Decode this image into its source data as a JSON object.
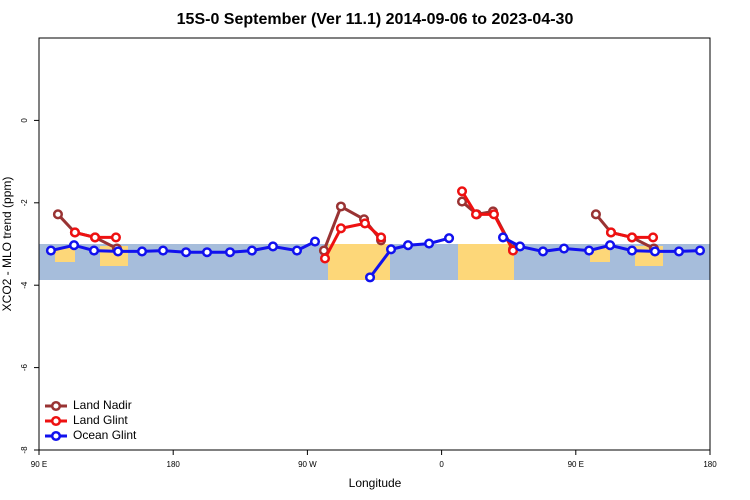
{
  "chart_data": {
    "type": "line",
    "title": "15S-0 September (Ver 11.1)   2014-09-06 to 2023-04-30",
    "xlabel": "Longitude",
    "ylabel": "XCO2 - MLO trend (ppm)",
    "xlim": [
      90,
      540
    ],
    "xticks": [
      {
        "value": 90,
        "label": "90 E"
      },
      {
        "value": 180,
        "label": "180"
      },
      {
        "value": 270,
        "label": "90 W"
      },
      {
        "value": 360,
        "label": "0"
      },
      {
        "value": 450,
        "label": "90 E"
      },
      {
        "value": 540,
        "label": "180"
      }
    ],
    "ylim": [
      -8,
      2
    ],
    "yticks": [
      0,
      -2,
      -4,
      -6,
      -8
    ],
    "legend": "bottom-left",
    "series": [
      {
        "name": "Land Nadir",
        "color": "#993333",
        "x": [
          102.7,
          114.1,
          127.6,
          142.3,
          null,
          281.1,
          292.5,
          308.0,
          319.4,
          null,
          373.7,
          383.7,
          394.5,
          407.9,
          null,
          463.5,
          473.6,
          487.7,
          502.4
        ],
        "values": [
          -2.28,
          -2.72,
          -2.84,
          -3.11,
          null,
          -3.16,
          -2.09,
          -2.4,
          -2.91,
          null,
          -1.97,
          -2.28,
          -2.21,
          -3.13,
          null,
          -2.28,
          -2.72,
          -2.84,
          -3.11
        ]
      },
      {
        "name": "Land Glint",
        "color": "#ee1111",
        "x": [
          114.1,
          127.6,
          141.6,
          null,
          281.8,
          292.5,
          308.6,
          319.4,
          null,
          373.7,
          383.1,
          395.1,
          407.9,
          null,
          473.6,
          487.7,
          501.8
        ],
        "values": [
          -2.72,
          -2.84,
          -2.84,
          null,
          -3.35,
          -2.62,
          -2.5,
          -2.84,
          null,
          -1.72,
          -2.28,
          -2.28,
          -3.16,
          null,
          -2.72,
          -2.84,
          -2.84
        ]
      },
      {
        "name": "Ocean Glint",
        "color": "#1111ee",
        "x": [
          98.0,
          113.5,
          126.9,
          143.0,
          159.1,
          173.2,
          188.6,
          202.7,
          218.1,
          232.8,
          246.9,
          263.0,
          275.1,
          null,
          312.0,
          326.1,
          337.5,
          351.6,
          365.0,
          null,
          401.2,
          412.6,
          428.0,
          442.1,
          458.9,
          473.0,
          487.7,
          503.1,
          519.2,
          533.3
        ],
        "values": [
          -3.16,
          -3.03,
          -3.16,
          -3.18,
          -3.18,
          -3.16,
          -3.2,
          -3.2,
          -3.2,
          -3.16,
          -3.06,
          -3.16,
          -2.94,
          null,
          -3.81,
          -3.13,
          -3.03,
          -2.99,
          -2.86,
          null,
          -2.84,
          -3.06,
          -3.18,
          -3.11,
          -3.16,
          -3.03,
          -3.16,
          -3.18,
          -3.18,
          -3.16
        ]
      }
    ]
  }
}
